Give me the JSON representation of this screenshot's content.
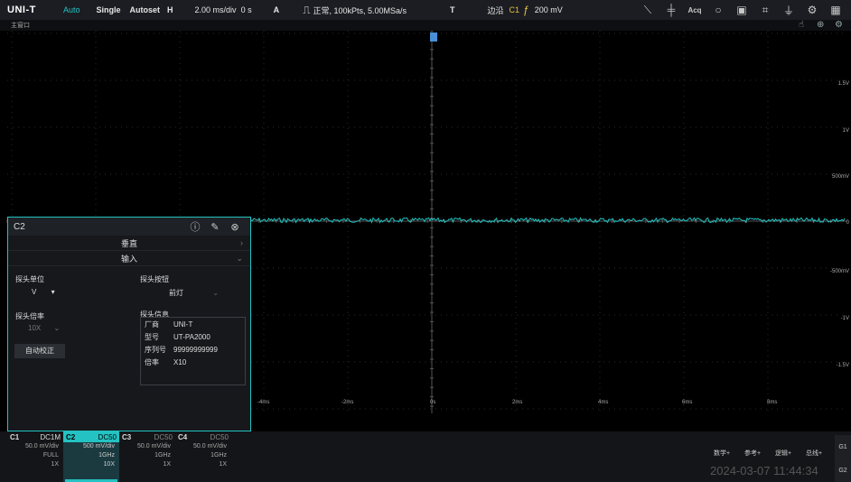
{
  "topbar": {
    "logo": "UNI-T",
    "run_mode": "Auto",
    "single": "Single",
    "autoset": "Autoset",
    "h_label": "H",
    "timebase": "2.00 ms/div",
    "offset": "0 s",
    "a_label": "A",
    "acq_info": "正常, 100kPts, 5.00MSa/s",
    "t_label": "T",
    "trigger_type": "边沿",
    "trigger_src": "C1",
    "trigger_level": "200 mV",
    "acq_icon": "Acq"
  },
  "subbar": {
    "label": "主窗口"
  },
  "right_scale": [
    "1.5V",
    "1V",
    "500mV",
    "0",
    "-500mV",
    "-1V",
    "-1.5V"
  ],
  "time_scale": [
    "-4ms",
    "-2ms",
    "0s",
    "2ms",
    "4ms",
    "6ms",
    "8ms"
  ],
  "panel": {
    "title": "C2",
    "sections": {
      "vertical": "垂直",
      "input": "输入"
    },
    "probe_unit_label": "探头单位",
    "probe_unit_value": "V",
    "probe_button_label": "探头按钮",
    "probe_button_value": "前灯",
    "probe_ratio_label": "探头倍率",
    "probe_ratio_value": "10X",
    "probe_info_label": "探头信息",
    "auto_cal": "自动校正",
    "info_rows": [
      {
        "k": "厂商",
        "v": "UNI-T"
      },
      {
        "k": "型号",
        "v": "UT-PA2000"
      },
      {
        "k": "序列号",
        "v": "99999999999"
      },
      {
        "k": "倍率",
        "v": "X10"
      }
    ]
  },
  "channels": [
    {
      "name": "C1",
      "coupling": "DC1M",
      "scale": "50.0 mV/div",
      "bw": "FULL",
      "probe": "1X"
    },
    {
      "name": "C2",
      "coupling": "DC50",
      "scale": "500 mV/div",
      "bw": "1GHz",
      "probe": "10X"
    },
    {
      "name": "C3",
      "coupling": "DC50",
      "scale": "50.0 mV/div",
      "bw": "1GHz",
      "probe": "1X"
    },
    {
      "name": "C4",
      "coupling": "DC50",
      "scale": "50.0 mV/div",
      "bw": "1GHz",
      "probe": "1X"
    }
  ],
  "menu": {
    "math": "数学+",
    "ref": "参考+",
    "logic": "逻辑+",
    "bus": "总线+"
  },
  "g1": "G1",
  "g2": "G2",
  "datetime": "2024-03-07 11:44:34",
  "colors": {
    "accent": "#24c2c2",
    "c1": "#e5c03a",
    "bg": "#000000"
  }
}
